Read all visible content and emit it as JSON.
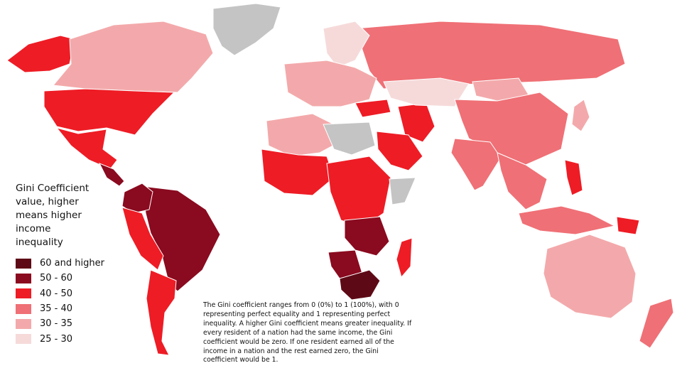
{
  "legend": {
    "title": "Gini Coefficient value, higher means higher income inequality",
    "items": [
      {
        "label": "60 and higher",
        "color": "#5e0a16"
      },
      {
        "label": "50 - 60",
        "color": "#8a0a1f"
      },
      {
        "label": "40 - 50",
        "color": "#ee1c25"
      },
      {
        "label": "35 - 40",
        "color": "#ef7076"
      },
      {
        "label": "30 - 35",
        "color": "#f3a9ab"
      },
      {
        "label": "25 - 30",
        "color": "#f6dada"
      }
    ],
    "no_data_color": "#c4c4c4"
  },
  "note": "The Gini coefficient ranges from 0 (0%) to 1 (100%), with 0 representing perfect equality and 1 representing perfect inequality. A higher Gini coefficient means greater inequality. If every resident of a nation had the same income, the Gini coefficient would be zero. If one resident earned all of the income in a nation and the rest earned zero, the Gini coefficient would be 1.",
  "map": {
    "regions": [
      {
        "name": "Greenland",
        "class": "no-data"
      },
      {
        "name": "Alaska/USA",
        "class": "40 - 50"
      },
      {
        "name": "Canada",
        "class": "30 - 35"
      },
      {
        "name": "United States",
        "class": "40 - 50"
      },
      {
        "name": "Mexico",
        "class": "40 - 50"
      },
      {
        "name": "Central America",
        "class": "50 - 60"
      },
      {
        "name": "Brazil",
        "class": "50 - 60"
      },
      {
        "name": "Colombia",
        "class": "50 - 60"
      },
      {
        "name": "Andean South America",
        "class": "40 - 50"
      },
      {
        "name": "Argentina",
        "class": "40 - 50"
      },
      {
        "name": "Russia",
        "class": "35 - 40"
      },
      {
        "name": "Scandinavia",
        "class": "25 - 30"
      },
      {
        "name": "Europe",
        "class": "30 - 35"
      },
      {
        "name": "Turkey",
        "class": "40 - 50"
      },
      {
        "name": "Iran",
        "class": "40 - 50"
      },
      {
        "name": "Kazakhstan",
        "class": "25 - 30"
      },
      {
        "name": "Mongolia",
        "class": "30 - 35"
      },
      {
        "name": "China",
        "class": "35 - 40"
      },
      {
        "name": "India",
        "class": "35 - 40"
      },
      {
        "name": "Saudi Arabia",
        "class": "40 - 50"
      },
      {
        "name": "North Africa",
        "class": "30 - 35"
      },
      {
        "name": "Libya/Egypt",
        "class": "no-data"
      },
      {
        "name": "West Africa",
        "class": "40 - 50"
      },
      {
        "name": "Central Africa",
        "class": "40 - 50"
      },
      {
        "name": "Somalia",
        "class": "no-data"
      },
      {
        "name": "Zambia/Zimbabwe",
        "class": "50 - 60"
      },
      {
        "name": "Namibia/Botswana",
        "class": "50 - 60"
      },
      {
        "name": "South Africa",
        "class": "60 and higher"
      },
      {
        "name": "Madagascar",
        "class": "40 - 50"
      },
      {
        "name": "Southeast Asia",
        "class": "35 - 40"
      },
      {
        "name": "Indonesia",
        "class": "35 - 40"
      },
      {
        "name": "Philippines",
        "class": "40 - 50"
      },
      {
        "name": "Papua New Guinea",
        "class": "40 - 50"
      },
      {
        "name": "Australia",
        "class": "30 - 35"
      },
      {
        "name": "New Zealand",
        "class": "35 - 40"
      },
      {
        "name": "Japan",
        "class": "30 - 35"
      }
    ]
  }
}
